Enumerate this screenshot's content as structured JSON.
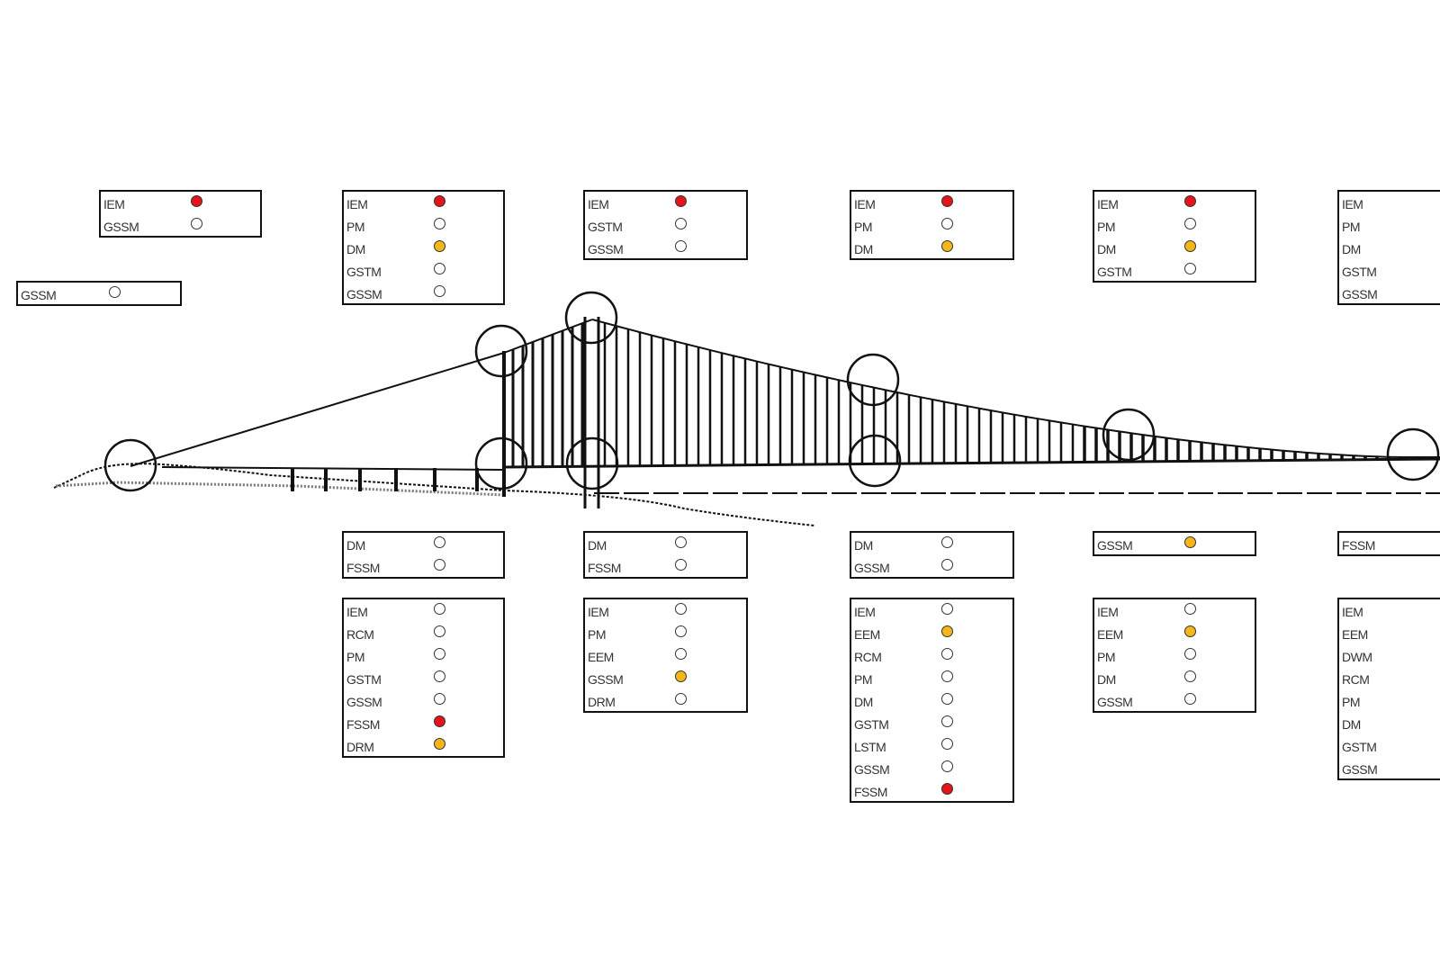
{
  "colors": {
    "red": "#e3141a",
    "amber": "#f4b61a",
    "none": "#ffffff",
    "line": "#111111"
  },
  "boxes": [
    {
      "id": "left-anchorage-top",
      "rows": [
        {
          "label": "IEM",
          "status": "red"
        },
        {
          "label": "GSSM",
          "status": "none"
        }
      ]
    },
    {
      "id": "left-anchorage-bottom",
      "rows": [
        {
          "label": "GSSM",
          "status": "none"
        }
      ]
    },
    {
      "id": "tower1-top",
      "rows": [
        {
          "label": "IEM",
          "status": "red"
        },
        {
          "label": "PM",
          "status": "none"
        },
        {
          "label": "DM",
          "status": "amber"
        },
        {
          "label": "GSTM",
          "status": "none"
        },
        {
          "label": "GSSM",
          "status": "none"
        }
      ]
    },
    {
      "id": "tower2-top",
      "rows": [
        {
          "label": "IEM",
          "status": "red"
        },
        {
          "label": "GSTM",
          "status": "none"
        },
        {
          "label": "GSSM",
          "status": "none"
        }
      ]
    },
    {
      "id": "span-quarter-top",
      "rows": [
        {
          "label": "IEM",
          "status": "red"
        },
        {
          "label": "PM",
          "status": "none"
        },
        {
          "label": "DM",
          "status": "amber"
        }
      ]
    },
    {
      "id": "span-3-top",
      "rows": [
        {
          "label": "IEM",
          "status": "red"
        },
        {
          "label": "PM",
          "status": "none"
        },
        {
          "label": "DM",
          "status": "amber"
        },
        {
          "label": "GSTM",
          "status": "none"
        }
      ]
    },
    {
      "id": "span-end-top",
      "rows": [
        {
          "label": "IEM",
          "status": null
        },
        {
          "label": "PM",
          "status": null
        },
        {
          "label": "DM",
          "status": null
        },
        {
          "label": "GSTM",
          "status": null
        },
        {
          "label": "GSSM",
          "status": null
        }
      ]
    },
    {
      "id": "tower1-deck",
      "rows": [
        {
          "label": "DM",
          "status": "none"
        },
        {
          "label": "FSSM",
          "status": "none"
        }
      ]
    },
    {
      "id": "tower2-deck",
      "rows": [
        {
          "label": "DM",
          "status": "none"
        },
        {
          "label": "FSSM",
          "status": "none"
        }
      ]
    },
    {
      "id": "span-quarter-deck",
      "rows": [
        {
          "label": "DM",
          "status": "none"
        },
        {
          "label": "GSSM",
          "status": "none"
        }
      ]
    },
    {
      "id": "span-3-deck",
      "rows": [
        {
          "label": "GSSM",
          "status": "amber"
        }
      ]
    },
    {
      "id": "span-end-deck",
      "rows": [
        {
          "label": "FSSM",
          "status": null
        }
      ]
    },
    {
      "id": "tower1-base",
      "rows": [
        {
          "label": "IEM",
          "status": "none"
        },
        {
          "label": "RCM",
          "status": "none"
        },
        {
          "label": "PM",
          "status": "none"
        },
        {
          "label": "GSTM",
          "status": "none"
        },
        {
          "label": "GSSM",
          "status": "none"
        },
        {
          "label": "FSSM",
          "status": "red"
        },
        {
          "label": "DRM",
          "status": "amber"
        }
      ]
    },
    {
      "id": "tower2-base",
      "rows": [
        {
          "label": "IEM",
          "status": "none"
        },
        {
          "label": "PM",
          "status": "none"
        },
        {
          "label": "EEM",
          "status": "none"
        },
        {
          "label": "GSSM",
          "status": "amber"
        },
        {
          "label": "DRM",
          "status": "none"
        }
      ]
    },
    {
      "id": "span-quarter-base",
      "rows": [
        {
          "label": "IEM",
          "status": "none"
        },
        {
          "label": "EEM",
          "status": "amber"
        },
        {
          "label": "RCM",
          "status": "none"
        },
        {
          "label": "PM",
          "status": "none"
        },
        {
          "label": "DM",
          "status": "none"
        },
        {
          "label": "GSTM",
          "status": "none"
        },
        {
          "label": "LSTM",
          "status": "none"
        },
        {
          "label": "GSSM",
          "status": "none"
        },
        {
          "label": "FSSM",
          "status": "red"
        }
      ]
    },
    {
      "id": "span-3-base",
      "rows": [
        {
          "label": "IEM",
          "status": "none"
        },
        {
          "label": "EEM",
          "status": "amber"
        },
        {
          "label": "PM",
          "status": "none"
        },
        {
          "label": "DM",
          "status": "none"
        },
        {
          "label": "GSSM",
          "status": "none"
        }
      ]
    },
    {
      "id": "span-end-base",
      "rows": [
        {
          "label": "IEM",
          "status": null
        },
        {
          "label": "EEM",
          "status": null
        },
        {
          "label": "DWM",
          "status": null
        },
        {
          "label": "RCM",
          "status": null
        },
        {
          "label": "PM",
          "status": null
        },
        {
          "label": "DM",
          "status": null
        },
        {
          "label": "GSTM",
          "status": null
        },
        {
          "label": "GSSM",
          "status": null
        }
      ]
    }
  ]
}
